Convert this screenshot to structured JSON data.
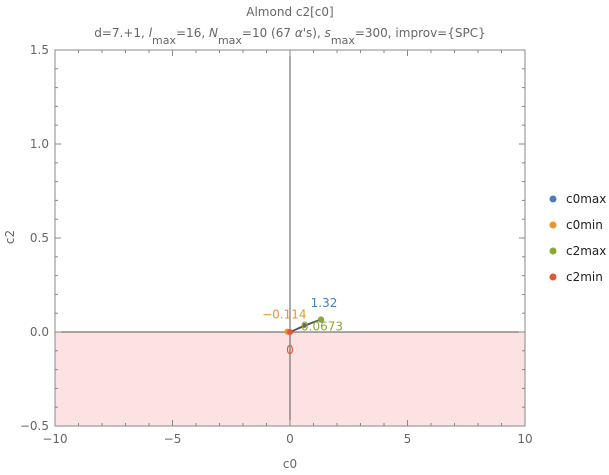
{
  "chart_data": {
    "type": "scatter",
    "title": "Almond c2[c0]",
    "subtitle": {
      "parts": [
        {
          "t": "d=7.+1, "
        },
        {
          "t": "l",
          "i": true
        },
        {
          "t": "max",
          "sub": true
        },
        {
          "t": "=16, "
        },
        {
          "t": "N",
          "i": true
        },
        {
          "t": "max",
          "sub": true
        },
        {
          "t": "=10 (67 "
        },
        {
          "t": "α",
          "i": true
        },
        {
          "t": "'s), "
        },
        {
          "t": "s",
          "i": true
        },
        {
          "t": "max",
          "sub": true
        },
        {
          "t": "=300, improv={SPC}"
        }
      ]
    },
    "xlabel": "c0",
    "ylabel": "c2",
    "xlim": [
      -10,
      10
    ],
    "ylim": [
      -0.5,
      1.5
    ],
    "x_ticks": [
      {
        "v": -10,
        "label": "−10"
      },
      {
        "v": -5,
        "label": "−5"
      },
      {
        "v": 0,
        "label": "0"
      },
      {
        "v": 5,
        "label": "5"
      },
      {
        "v": 10,
        "label": "10"
      }
    ],
    "y_ticks": [
      {
        "v": -0.5,
        "label": "−0.5"
      },
      {
        "v": 0,
        "label": "0.0"
      },
      {
        "v": 0.5,
        "label": "0.5"
      },
      {
        "v": 1,
        "label": "1.0"
      },
      {
        "v": 1.5,
        "label": "1.5"
      }
    ],
    "shaded_region": {
      "y_from": -0.5,
      "y_to": 0,
      "color": "#fde2e3"
    },
    "boundary": {
      "x": [
        0,
        0.6,
        1.32,
        0
      ],
      "y": [
        0,
        0.035,
        0.0673,
        0
      ],
      "color": "#555555"
    },
    "series": [
      {
        "name": "c0max",
        "color": "#4a7eb5",
        "points": [
          {
            "x": 1.32,
            "y": 0.065,
            "label": "1.32"
          }
        ]
      },
      {
        "name": "c0min",
        "color": "#e8962e",
        "points": [
          {
            "x": -0.114,
            "y": 0.002,
            "label": "−0.114"
          }
        ]
      },
      {
        "name": "c2max",
        "color": "#8aa832",
        "points": [
          {
            "x": 1.32,
            "y": 0.0673,
            "label": "0.0673"
          }
        ]
      },
      {
        "name": "c2min",
        "color": "#e2572e",
        "points": [
          {
            "x": 0,
            "y": 0,
            "label": "0"
          }
        ]
      }
    ],
    "extra_points": [
      {
        "x": 0.6,
        "y": 0.035,
        "color": "#666666"
      }
    ],
    "legend_position": "right",
    "grid": false
  }
}
